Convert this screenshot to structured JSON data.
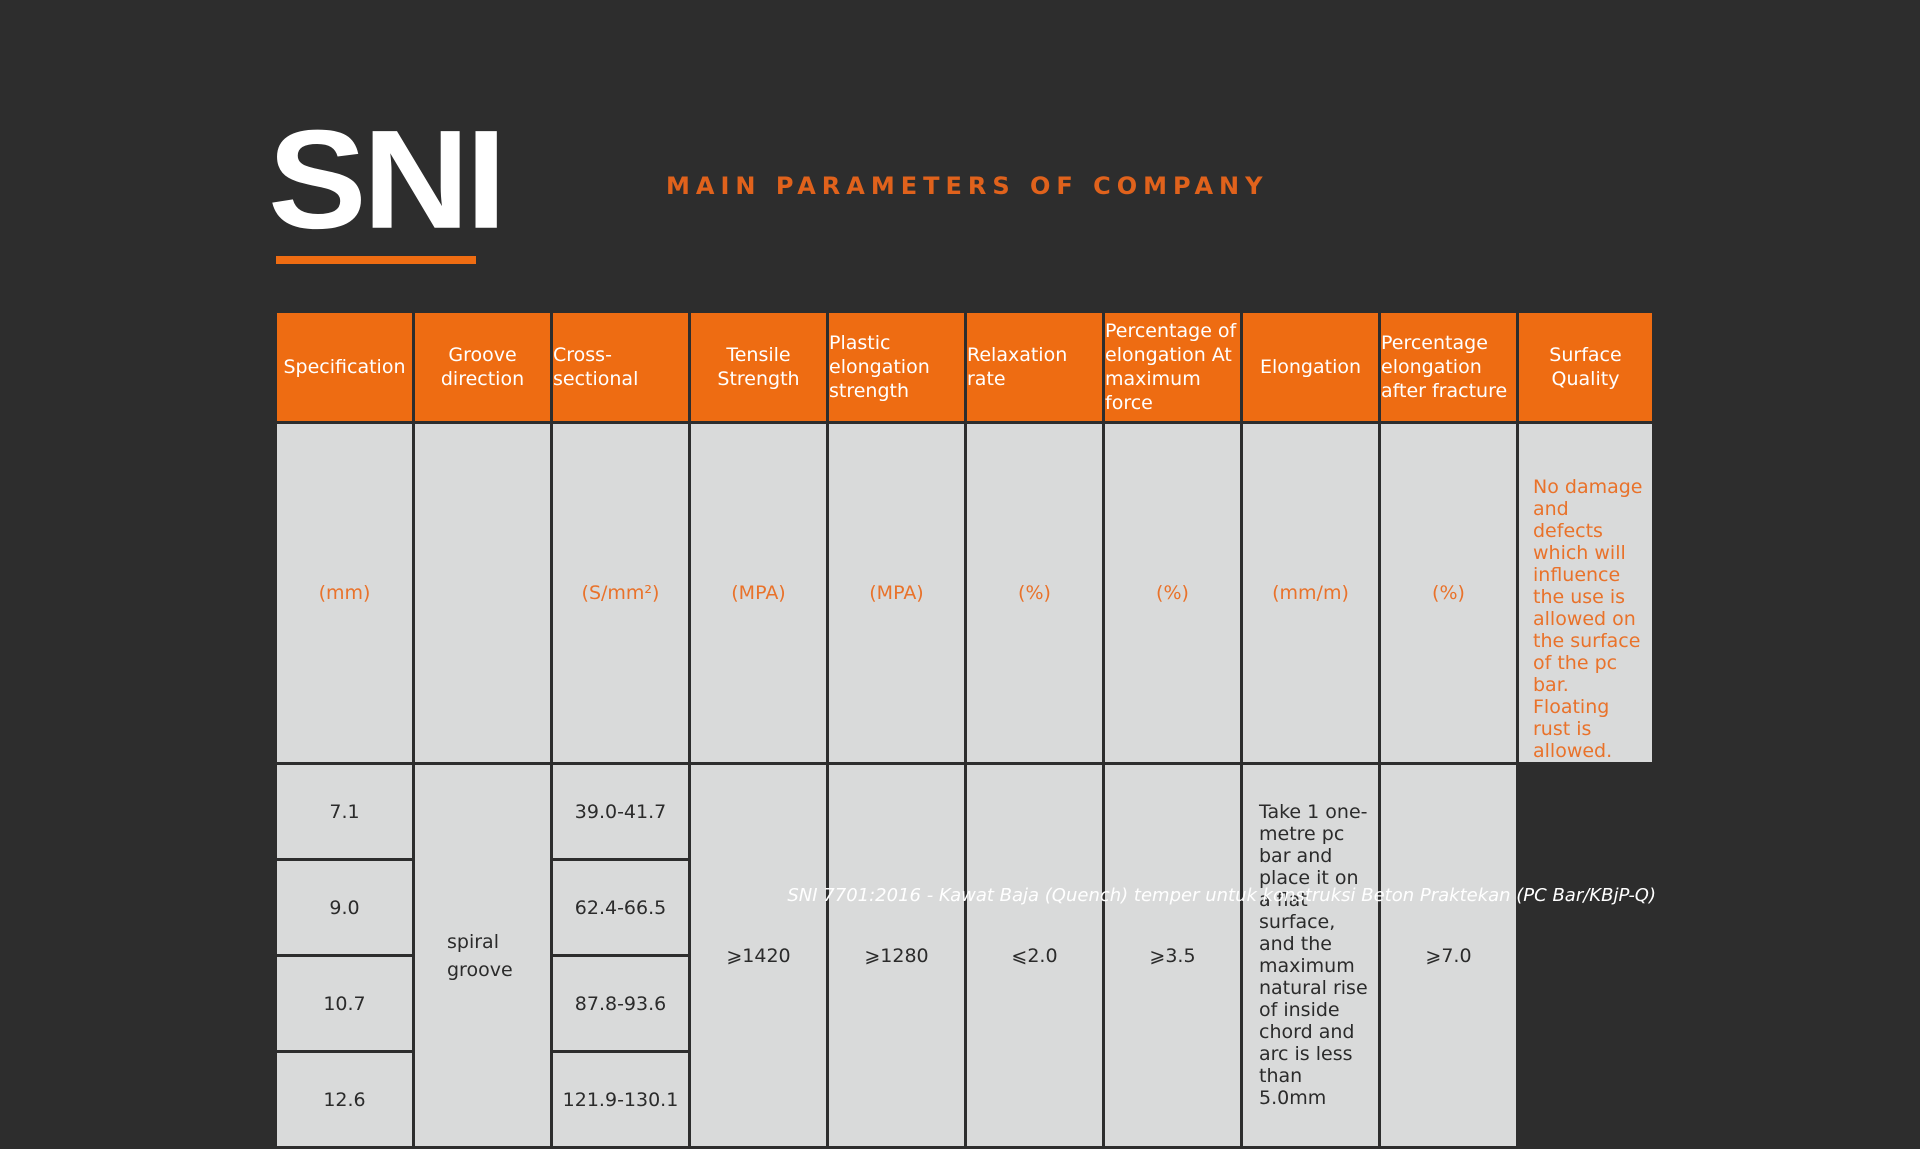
{
  "logo": {
    "text": "SNI"
  },
  "heading": "MAIN PARAMETERS OF COMPANY",
  "table": {
    "headers": [
      "Specification",
      "Groove direction",
      "Cross-sectional",
      "Tensile Strength",
      "Plastic elongation strength",
      "Relaxation rate",
      "Percentage of elongation At maximum force",
      "Elongation",
      "Percentage elongation after fracture",
      "Surface Quality"
    ],
    "units": [
      "(mm)",
      "",
      "(S/mm²)",
      "(MPA)",
      "(MPA)",
      "(%)",
      "(%)",
      "(mm/m)",
      "(%)"
    ],
    "specifications": [
      "7.1",
      "9.0",
      "10.7",
      "12.6"
    ],
    "cross_sections": [
      "39.0-41.7",
      "62.4-66.5",
      "87.8-93.6",
      "121.9-130.1"
    ],
    "groove": "spiral groove",
    "tensile": "⩾1420",
    "plastic": "⩾1280",
    "relaxation": "⩽2.0",
    "elongation_max_force": "⩾3.5",
    "elongation_text": "Take 1 one-metre pc bar and place it on a flat surface, and the maximum natural rise of inside chord and arc is less than 5.0mm",
    "after_fracture": "⩾7.0",
    "surface_quality": "No damage and defects which will influence the use is allowed on the surface of the pc bar. Floating rust is allowed."
  },
  "footnote": "SNI 7701:2016 - Kawat Baja (Quench) temper untuk  konstruksi Beton Praktekan (PC Bar/KBjP-Q)",
  "colors": {
    "accent": "#ee6c12",
    "background": "#2d2d2d",
    "cell": "#d9dada"
  }
}
